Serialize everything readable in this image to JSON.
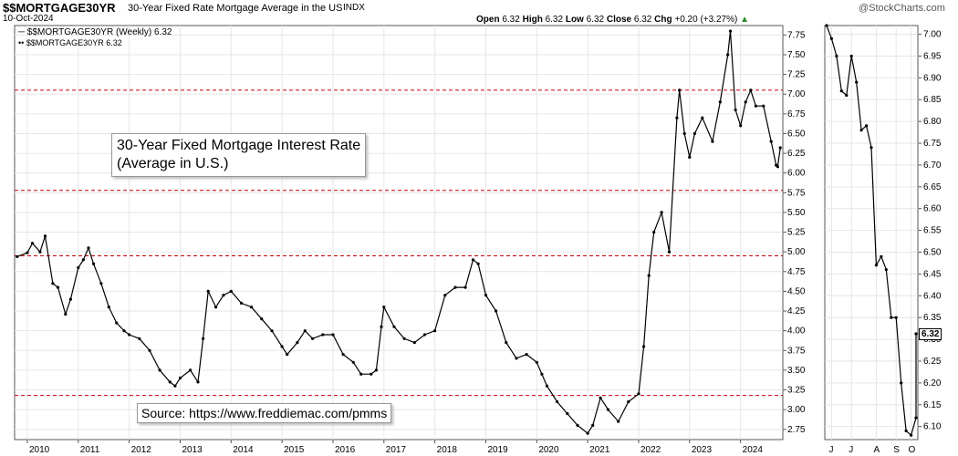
{
  "header": {
    "symbol": "$$MORTGAGE30YR",
    "description": "30-Year Fixed Rate Mortgage Average in the US",
    "exchange": "INDX",
    "date": "10-Oct-2024",
    "open_label": "Open",
    "open": "6.32",
    "high_label": "High",
    "high": "6.32",
    "low_label": "Low",
    "low": "6.32",
    "close_label": "Close",
    "close": "6.32",
    "chg_label": "Chg",
    "chg": "+0.20 (+3.27%)",
    "watermark": "@StockCharts.com"
  },
  "legend": {
    "line1": "$$MORTGAGE30YR (Weekly) 6.32",
    "line2": "$$MORTGAGE30YR 6.32"
  },
  "annotation": {
    "line1": "30-Year Fixed Mortgage Interest Rate",
    "line2": "(Average in U.S.)"
  },
  "source": "Source: https://www.freddiemac.com/pmms",
  "last_value": "6.32",
  "colors": {
    "series": "#000000",
    "reference_lines": "#cc0000",
    "grid": "#e6e6e6"
  },
  "chart_data": [
    {
      "type": "line",
      "title": "",
      "xlabel": "",
      "ylabel": "",
      "frequency": "Weekly",
      "x_ticks": [
        "2010",
        "2011",
        "2012",
        "2013",
        "2014",
        "2015",
        "2016",
        "2017",
        "2018",
        "2019",
        "2020",
        "2021",
        "2022",
        "2023",
        "2024"
      ],
      "y_ticks": [
        "2.75",
        "3.00",
        "3.25",
        "3.50",
        "3.75",
        "4.00",
        "4.25",
        "4.50",
        "4.75",
        "5.00",
        "5.25",
        "5.50",
        "5.75",
        "6.00",
        "6.25",
        "6.50",
        "6.75",
        "7.00",
        "7.25",
        "7.50",
        "7.75"
      ],
      "ylim": [
        2.62,
        7.87
      ],
      "xlim": [
        2009.75,
        2024.83
      ],
      "grid": true,
      "reference_lines": [
        7.05,
        5.78,
        4.95,
        3.18
      ],
      "series": [
        {
          "name": "$$MORTGAGE30YR",
          "x": [
            2009.8,
            2010.0,
            2010.1,
            2010.25,
            2010.35,
            2010.5,
            2010.6,
            2010.75,
            2010.85,
            2011.0,
            2011.1,
            2011.2,
            2011.3,
            2011.45,
            2011.6,
            2011.75,
            2011.9,
            2012.0,
            2012.2,
            2012.4,
            2012.6,
            2012.8,
            2012.9,
            2013.0,
            2013.2,
            2013.35,
            2013.45,
            2013.55,
            2013.7,
            2013.85,
            2014.0,
            2014.2,
            2014.4,
            2014.6,
            2014.8,
            2015.0,
            2015.1,
            2015.3,
            2015.45,
            2015.6,
            2015.8,
            2016.0,
            2016.2,
            2016.4,
            2016.55,
            2016.75,
            2016.85,
            2016.95,
            2017.0,
            2017.2,
            2017.4,
            2017.6,
            2017.8,
            2018.0,
            2018.2,
            2018.4,
            2018.6,
            2018.75,
            2018.85,
            2019.0,
            2019.2,
            2019.4,
            2019.6,
            2019.8,
            2020.0,
            2020.1,
            2020.2,
            2020.4,
            2020.6,
            2020.8,
            2021.0,
            2021.1,
            2021.25,
            2021.4,
            2021.6,
            2021.8,
            2022.0,
            2022.1,
            2022.2,
            2022.3,
            2022.45,
            2022.6,
            2022.75,
            2022.8,
            2022.9,
            2023.0,
            2023.1,
            2023.25,
            2023.45,
            2023.6,
            2023.75,
            2023.8,
            2023.9,
            2024.0,
            2024.1,
            2024.2,
            2024.3,
            2024.45,
            2024.6,
            2024.7,
            2024.73,
            2024.78
          ],
          "values": [
            4.94,
            4.99,
            5.11,
            5.0,
            5.2,
            4.6,
            4.55,
            4.21,
            4.4,
            4.8,
            4.9,
            5.05,
            4.85,
            4.6,
            4.3,
            4.1,
            4.0,
            3.95,
            3.9,
            3.75,
            3.5,
            3.35,
            3.3,
            3.4,
            3.5,
            3.35,
            3.9,
            4.5,
            4.3,
            4.45,
            4.5,
            4.35,
            4.3,
            4.15,
            4.0,
            3.8,
            3.7,
            3.85,
            4.0,
            3.9,
            3.95,
            3.95,
            3.7,
            3.6,
            3.45,
            3.45,
            3.5,
            4.05,
            4.3,
            4.05,
            3.9,
            3.85,
            3.95,
            4.0,
            4.45,
            4.55,
            4.55,
            4.9,
            4.85,
            4.45,
            4.25,
            3.85,
            3.65,
            3.7,
            3.6,
            3.45,
            3.3,
            3.1,
            2.95,
            2.8,
            2.7,
            2.8,
            3.15,
            3.0,
            2.85,
            3.1,
            3.2,
            3.8,
            4.7,
            5.25,
            5.5,
            5.0,
            6.7,
            7.05,
            6.5,
            6.2,
            6.5,
            6.7,
            6.4,
            6.9,
            7.5,
            7.8,
            6.8,
            6.6,
            6.9,
            7.05,
            6.85,
            6.85,
            6.4,
            6.1,
            6.08,
            6.32
          ]
        }
      ]
    },
    {
      "type": "line",
      "title": "",
      "frequency": "Weekly (zoom)",
      "x_ticks": [
        "J",
        "J",
        "A",
        "S",
        "O"
      ],
      "y_ticks": [
        "6.10",
        "6.15",
        "6.20",
        "6.25",
        "6.30",
        "6.35",
        "6.40",
        "6.45",
        "6.50",
        "6.55",
        "6.60",
        "6.65",
        "6.70",
        "6.75",
        "6.80",
        "6.85",
        "6.90",
        "6.95",
        "7.00"
      ],
      "ylim": [
        6.07,
        7.02
      ],
      "grid": true,
      "series": [
        {
          "name": "$$MORTGAGE30YR",
          "x": [
            0,
            1,
            2,
            3,
            4,
            5,
            6,
            7,
            8,
            9,
            10,
            11,
            12,
            13,
            14,
            15,
            16,
            17,
            18
          ],
          "values": [
            7.02,
            6.99,
            6.95,
            6.87,
            6.86,
            6.95,
            6.89,
            6.78,
            6.79,
            6.74,
            6.47,
            6.49,
            6.46,
            6.35,
            6.35,
            6.2,
            6.09,
            6.08,
            6.12
          ],
          "close": 6.32
        }
      ]
    }
  ]
}
